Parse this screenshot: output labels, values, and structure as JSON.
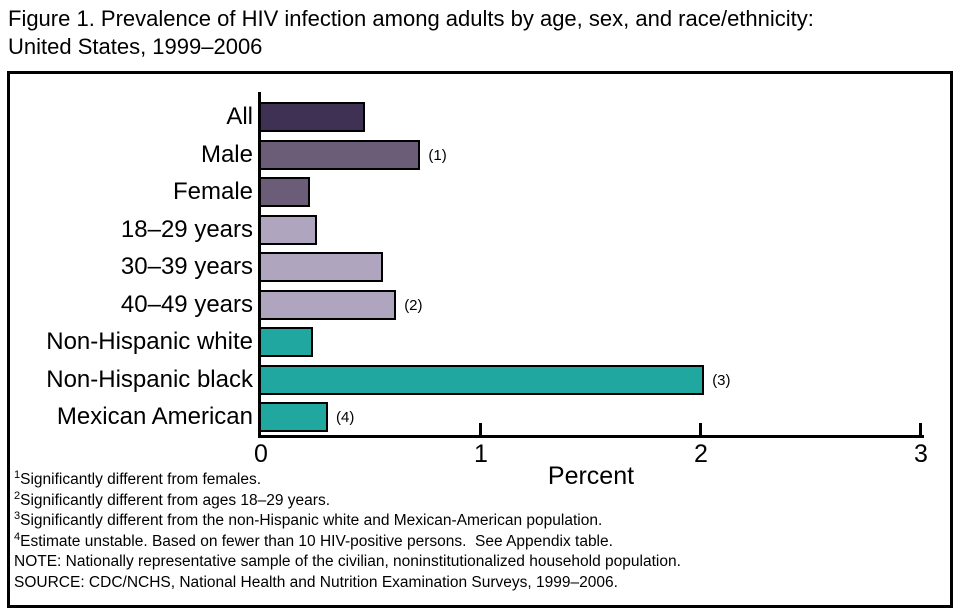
{
  "title": {
    "line1": "Figure 1. Prevalence of HIV infection among adults by age, sex, and race/ethnicity:",
    "line2": "United States, 1999–2006"
  },
  "chart_data": {
    "type": "bar",
    "orientation": "horizontal",
    "title": "Figure 1. Prevalence of HIV infection among adults by age, sex, and race/ethnicity: United States, 1999–2006",
    "xlabel": "Percent",
    "xlim": [
      0,
      3
    ],
    "x_ticks": [
      "0",
      "1",
      "2",
      "3"
    ],
    "grid": "off",
    "categories": [
      "All",
      "Male",
      "Female",
      "18–29 years",
      "30–39 years",
      "40–49 years",
      "Non-Hispanic white",
      "Non-Hispanic black",
      "Mexican American"
    ],
    "values": [
      0.47,
      0.72,
      0.22,
      0.25,
      0.55,
      0.61,
      0.23,
      2.01,
      0.3
    ],
    "annotations": [
      "",
      "(1)",
      "",
      "",
      "",
      "(2)",
      "",
      "(3)",
      "(4)"
    ],
    "bar_colors": [
      "#3E3153",
      "#6B5D78",
      "#6B5D78",
      "#AFA5BE",
      "#AFA5BE",
      "#AFA5BE",
      "#20A8A0",
      "#20A8A0",
      "#20A8A0"
    ],
    "palette": {
      "all": "#3E3153",
      "sex": "#6B5D78",
      "age": "#AFA5BE",
      "race": "#20A8A0",
      "bar_outline": "#000000"
    }
  },
  "footnotes": [
    {
      "sup": "1",
      "text": "Significantly different from females."
    },
    {
      "sup": "2",
      "text": "Significantly different from ages 18–29 years."
    },
    {
      "sup": "3",
      "text": "Significantly different from the non-Hispanic white and Mexican-American population."
    },
    {
      "sup": "4",
      "text": "Estimate unstable. Based on fewer than 10 HIV-positive persons.  See Appendix table."
    },
    {
      "sup": "",
      "text": "NOTE: Nationally representative sample of the civilian, noninstitutionalized household population."
    },
    {
      "sup": "",
      "text": "SOURCE: CDC/NCHS, National Health and Nutrition Examination Surveys, 1999–2006."
    }
  ]
}
